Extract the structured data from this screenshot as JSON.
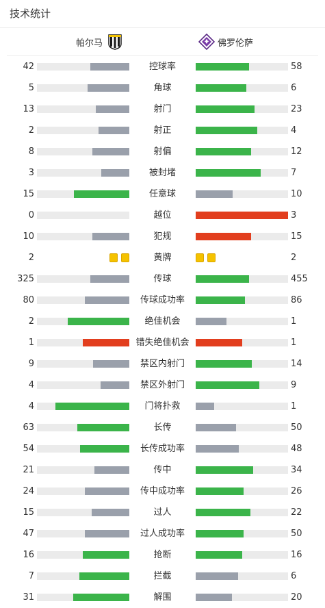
{
  "header": {
    "title": "技术统计"
  },
  "teams": {
    "home": "帕尔马",
    "away": "佛罗伦萨"
  },
  "colors": {
    "winner": "#3bb44a",
    "loser": "#9aa0ab",
    "danger": "#e23e1e",
    "track": "#ebebeb",
    "card": "#f5c200"
  },
  "icons": {
    "home_crest": "parma-crest-icon",
    "away_crest": "fiorentina-crest-icon",
    "card": "yellow-card-icon"
  },
  "stats": [
    {
      "label": "控球率",
      "home": "42",
      "away": "58",
      "home_fill": 0.42,
      "away_fill": 0.58,
      "home_color": "loser",
      "away_color": "winner"
    },
    {
      "label": "角球",
      "home": "5",
      "away": "6",
      "home_fill": 0.45,
      "away_fill": 0.55,
      "home_color": "loser",
      "away_color": "winner"
    },
    {
      "label": "射门",
      "home": "13",
      "away": "23",
      "home_fill": 0.36,
      "away_fill": 0.64,
      "home_color": "loser",
      "away_color": "winner"
    },
    {
      "label": "射正",
      "home": "2",
      "away": "4",
      "home_fill": 0.33,
      "away_fill": 0.67,
      "home_color": "loser",
      "away_color": "winner"
    },
    {
      "label": "射偏",
      "home": "8",
      "away": "12",
      "home_fill": 0.4,
      "away_fill": 0.6,
      "home_color": "loser",
      "away_color": "winner"
    },
    {
      "label": "被封堵",
      "home": "3",
      "away": "7",
      "home_fill": 0.3,
      "away_fill": 0.7,
      "home_color": "loser",
      "away_color": "winner"
    },
    {
      "label": "任意球",
      "home": "15",
      "away": "10",
      "home_fill": 0.6,
      "away_fill": 0.4,
      "home_color": "winner",
      "away_color": "loser"
    },
    {
      "label": "越位",
      "home": "0",
      "away": "3",
      "home_fill": 0.0,
      "away_fill": 1.0,
      "home_color": "loser",
      "away_color": "danger"
    },
    {
      "label": "犯规",
      "home": "10",
      "away": "15",
      "home_fill": 0.4,
      "away_fill": 0.6,
      "home_color": "loser",
      "away_color": "danger"
    },
    {
      "label": "黄牌",
      "home": "2",
      "away": "2",
      "cards": {
        "home": 2,
        "away": 2
      }
    },
    {
      "label": "传球",
      "home": "325",
      "away": "455",
      "home_fill": 0.42,
      "away_fill": 0.58,
      "home_color": "loser",
      "away_color": "winner"
    },
    {
      "label": "传球成功率",
      "home": "80",
      "away": "86",
      "home_fill": 0.48,
      "away_fill": 0.53,
      "home_color": "loser",
      "away_color": "winner"
    },
    {
      "label": "绝佳机会",
      "home": "2",
      "away": "1",
      "home_fill": 0.67,
      "away_fill": 0.33,
      "home_color": "winner",
      "away_color": "loser"
    },
    {
      "label": "错失绝佳机会",
      "home": "1",
      "away": "1",
      "home_fill": 0.5,
      "away_fill": 0.5,
      "home_color": "danger",
      "away_color": "danger"
    },
    {
      "label": "禁区内射门",
      "home": "9",
      "away": "14",
      "home_fill": 0.39,
      "away_fill": 0.61,
      "home_color": "loser",
      "away_color": "winner"
    },
    {
      "label": "禁区外射门",
      "home": "4",
      "away": "9",
      "home_fill": 0.31,
      "away_fill": 0.69,
      "home_color": "loser",
      "away_color": "winner"
    },
    {
      "label": "门将扑救",
      "home": "4",
      "away": "1",
      "home_fill": 0.8,
      "away_fill": 0.2,
      "home_color": "winner",
      "away_color": "loser"
    },
    {
      "label": "长传",
      "home": "63",
      "away": "50",
      "home_fill": 0.56,
      "away_fill": 0.44,
      "home_color": "winner",
      "away_color": "loser"
    },
    {
      "label": "长传成功率",
      "home": "54",
      "away": "48",
      "home_fill": 0.53,
      "away_fill": 0.47,
      "home_color": "winner",
      "away_color": "loser"
    },
    {
      "label": "传中",
      "home": "21",
      "away": "34",
      "home_fill": 0.38,
      "away_fill": 0.62,
      "home_color": "loser",
      "away_color": "winner"
    },
    {
      "label": "传中成功率",
      "home": "24",
      "away": "26",
      "home_fill": 0.48,
      "away_fill": 0.52,
      "home_color": "loser",
      "away_color": "winner"
    },
    {
      "label": "过人",
      "home": "15",
      "away": "22",
      "home_fill": 0.41,
      "away_fill": 0.59,
      "home_color": "loser",
      "away_color": "winner"
    },
    {
      "label": "过人成功率",
      "home": "47",
      "away": "50",
      "home_fill": 0.48,
      "away_fill": 0.52,
      "home_color": "loser",
      "away_color": "winner"
    },
    {
      "label": "抢断",
      "home": "16",
      "away": "16",
      "home_fill": 0.5,
      "away_fill": 0.5,
      "home_color": "winner",
      "away_color": "winner"
    },
    {
      "label": "拦截",
      "home": "7",
      "away": "6",
      "home_fill": 0.54,
      "away_fill": 0.46,
      "home_color": "winner",
      "away_color": "loser"
    },
    {
      "label": "解围",
      "home": "31",
      "away": "20",
      "home_fill": 0.61,
      "away_fill": 0.39,
      "home_color": "winner",
      "away_color": "loser"
    }
  ]
}
